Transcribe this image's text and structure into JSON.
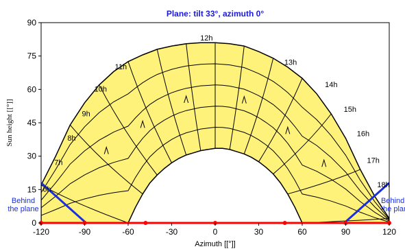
{
  "chart_data": {
    "type": "line",
    "title": "Plane: tilt 33°, azimuth 0°",
    "xlabel": "Azimuth [[°]]",
    "ylabel": "Sun height [[°]]",
    "xlim": [
      -120,
      120
    ],
    "ylim": [
      0,
      90
    ],
    "xticks": [
      -120,
      -90,
      -60,
      -30,
      0,
      30,
      60,
      90,
      120
    ],
    "yticks": [
      0,
      15,
      30,
      45,
      60,
      75,
      90
    ],
    "grid": false,
    "colors": {
      "title": "#1a1ad8",
      "fill": "#fff27a",
      "curve": "#000000",
      "horizon_line": "#ff0000",
      "horizon_points": "#ff0000",
      "behind_plane": "#1a2fe0"
    },
    "annual_envelope": {
      "outer": [
        [
          -120,
          17
        ],
        [
          -110,
          30
        ],
        [
          -100,
          44
        ],
        [
          -90,
          54
        ],
        [
          -80,
          62
        ],
        [
          -70,
          68
        ],
        [
          -60,
          72.5
        ],
        [
          -50,
          75.5
        ],
        [
          -40,
          78
        ],
        [
          -30,
          79.5
        ],
        [
          -20,
          80.5
        ],
        [
          -10,
          81
        ],
        [
          0,
          81
        ],
        [
          10,
          80.5
        ],
        [
          20,
          79.5
        ],
        [
          30,
          77
        ],
        [
          40,
          74
        ],
        [
          50,
          70
        ],
        [
          60,
          65
        ],
        [
          70,
          58
        ],
        [
          80,
          49
        ],
        [
          90,
          38
        ],
        [
          100,
          24
        ],
        [
          110,
          12
        ],
        [
          120,
          2
        ]
      ],
      "inner": [
        [
          -60,
          0
        ],
        [
          -55,
          7
        ],
        [
          -50,
          13
        ],
        [
          -45,
          18
        ],
        [
          -40,
          21.5
        ],
        [
          -35,
          24.5
        ],
        [
          -30,
          27
        ],
        [
          -25,
          29
        ],
        [
          -20,
          30.5
        ],
        [
          -15,
          31.5
        ],
        [
          -10,
          32.5
        ],
        [
          -5,
          33
        ],
        [
          0,
          33.5
        ],
        [
          5,
          33.5
        ],
        [
          10,
          33
        ],
        [
          15,
          32
        ],
        [
          20,
          31
        ],
        [
          25,
          29.5
        ],
        [
          30,
          27.5
        ],
        [
          35,
          25
        ],
        [
          40,
          22
        ],
        [
          45,
          18
        ],
        [
          50,
          13
        ],
        [
          55,
          7
        ],
        [
          60,
          0
        ]
      ]
    },
    "hour_labels": [
      {
        "label": "6h",
        "x": -116,
        "y": 14
      },
      {
        "label": "7h",
        "x": -108,
        "y": 26
      },
      {
        "label": "8h",
        "x": -99,
        "y": 37
      },
      {
        "label": "9h",
        "x": -89,
        "y": 48
      },
      {
        "label": "10h",
        "x": -79,
        "y": 59
      },
      {
        "label": "11h",
        "x": -65,
        "y": 69
      },
      {
        "label": "12h",
        "x": -6,
        "y": 82
      },
      {
        "label": "13h",
        "x": 52,
        "y": 71
      },
      {
        "label": "14h",
        "x": 80,
        "y": 61
      },
      {
        "label": "15h",
        "x": 93,
        "y": 50
      },
      {
        "label": "16h",
        "x": 102,
        "y": 39
      },
      {
        "label": "17h",
        "x": 109,
        "y": 27
      },
      {
        "label": "18h",
        "x": 116,
        "y": 16
      }
    ],
    "behind_plane_left": {
      "text_lines": [
        "Behind",
        "the plane"
      ],
      "line": [
        [
          -120,
          18
        ],
        [
          -89,
          0
        ]
      ]
    },
    "behind_plane_right": {
      "text_lines": [
        "Behind",
        "the plane"
      ],
      "line": [
        [
          89,
          0
        ],
        [
          120,
          18
        ]
      ]
    },
    "horizon_points": [
      -120,
      -90,
      -48,
      0,
      48,
      90,
      120
    ]
  }
}
